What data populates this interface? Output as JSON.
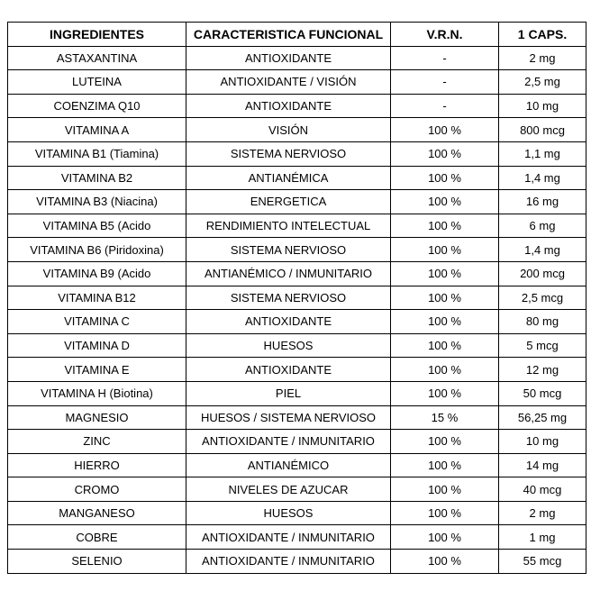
{
  "table": {
    "header": [
      "INGREDIENTES",
      "CARACTERISTICA FUNCIONAL",
      "V.R.N.",
      "1 CAPS."
    ],
    "rows": [
      [
        "ASTAXANTINA",
        "ANTIOXIDANTE",
        "-",
        "2 mg"
      ],
      [
        "LUTEINA",
        "ANTIOXIDANTE / VISIÓN",
        "-",
        "2,5 mg"
      ],
      [
        "COENZIMA Q10",
        "ANTIOXIDANTE",
        "-",
        "10 mg"
      ],
      [
        "VITAMINA A",
        "VISIÓN",
        "100 %",
        "800 mcg"
      ],
      [
        "VITAMINA B1 (Tiamina)",
        "SISTEMA NERVIOSO",
        "100 %",
        "1,1 mg"
      ],
      [
        "VITAMINA B2",
        "ANTIANÉMICA",
        "100 %",
        "1,4 mg"
      ],
      [
        "VITAMINA B3 (Niacina)",
        "ENERGETICA",
        "100 %",
        "16 mg"
      ],
      [
        "VITAMINA B5 (Acido",
        "RENDIMIENTO INTELECTUAL",
        "100 %",
        "6 mg"
      ],
      [
        "VITAMINA B6 (Piridoxina)",
        "SISTEMA NERVIOSO",
        "100 %",
        "1,4 mg"
      ],
      [
        "VITAMINA B9 (Acido",
        "ANTIANÉMICO / INMUNITARIO",
        "100 %",
        "200 mcg"
      ],
      [
        "VITAMINA B12",
        "SISTEMA NERVIOSO",
        "100 %",
        "2,5 mcg"
      ],
      [
        "VITAMINA C",
        "ANTIOXIDANTE",
        "100 %",
        "80 mg"
      ],
      [
        "VITAMINA D",
        "HUESOS",
        "100 %",
        "5 mcg"
      ],
      [
        "VITAMINA E",
        "ANTIOXIDANTE",
        "100 %",
        "12 mg"
      ],
      [
        "VITAMINA H (Biotina)",
        "PIEL",
        "100 %",
        "50 mcg"
      ],
      [
        "MAGNESIO",
        "HUESOS / SISTEMA NERVIOSO",
        "15 %",
        "56,25 mg"
      ],
      [
        "ZINC",
        "ANTIOXIDANTE / INMUNITARIO",
        "100 %",
        "10 mg"
      ],
      [
        "HIERRO",
        "ANTIANÉMICO",
        "100 %",
        "14 mg"
      ],
      [
        "CROMO",
        "NIVELES DE AZUCAR",
        "100 %",
        "40 mcg"
      ],
      [
        "MANGANESO",
        "HUESOS",
        "100 %",
        "2 mg"
      ],
      [
        "COBRE",
        "ANTIOXIDANTE / INMUNITARIO",
        "100 %",
        "1 mg"
      ],
      [
        "SELENIO",
        "ANTIOXIDANTE / INMUNITARIO",
        "100 %",
        "55 mcg"
      ]
    ]
  }
}
